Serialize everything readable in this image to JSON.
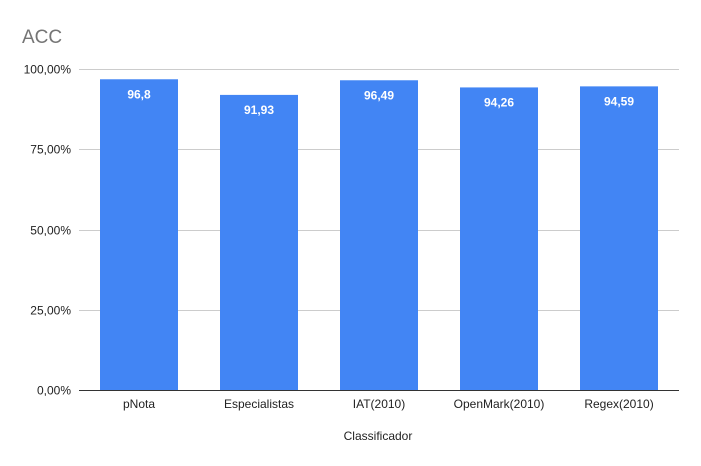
{
  "chart_data": {
    "type": "bar",
    "title": "ACC",
    "xlabel": "Classificador",
    "ylabel": "",
    "categories": [
      "pNota",
      "Especialistas",
      "IAT(2010)",
      "OpenMark(2010)",
      "Regex(2010)"
    ],
    "values": [
      96.8,
      91.93,
      96.49,
      94.26,
      94.59
    ],
    "value_labels": [
      "96,8",
      "91,93",
      "96,49",
      "94,26",
      "94,59"
    ],
    "ylim": [
      0,
      100
    ],
    "yticks": [
      0,
      25,
      50,
      75,
      100
    ],
    "ytick_labels": [
      "0,00%",
      "25,00%",
      "50,00%",
      "75,00%",
      "100,00%"
    ],
    "bar_color": "#4285f4",
    "grid": true,
    "legend": "none"
  }
}
